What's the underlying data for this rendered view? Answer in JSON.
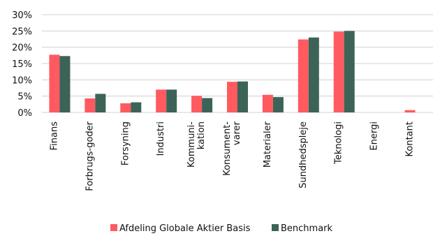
{
  "chart_data": {
    "type": "bar",
    "categories": [
      [
        "Finans"
      ],
      [
        "Forbrugs-goder"
      ],
      [
        "Forsyning"
      ],
      [
        "Industri"
      ],
      [
        "Kommuni-",
        "kation"
      ],
      [
        "Konsument-",
        "varer"
      ],
      [
        "Materialer"
      ],
      [
        "Sundhedspleje"
      ],
      [
        "Teknologi"
      ],
      [
        "Energi"
      ],
      [
        "Kontant"
      ]
    ],
    "series": [
      {
        "name": "Afdeling Globale Aktier Basis",
        "color": "#ff5a5f",
        "values": [
          17.7,
          4.3,
          2.8,
          7.0,
          5.1,
          9.4,
          5.4,
          22.4,
          24.8,
          0.0,
          0.7
        ]
      },
      {
        "name": "Benchmark",
        "color": "#3c6358",
        "values": [
          17.3,
          5.7,
          3.1,
          7.0,
          4.4,
          9.5,
          4.7,
          23.0,
          25.0,
          0.0,
          0.0
        ]
      }
    ],
    "ylim": [
      0,
      30
    ],
    "yticks": [
      0,
      5,
      10,
      15,
      20,
      25,
      30
    ],
    "ytick_suffix": "%",
    "grid": true,
    "legend_position": "bottom",
    "title": "",
    "xlabel": "",
    "ylabel": ""
  }
}
